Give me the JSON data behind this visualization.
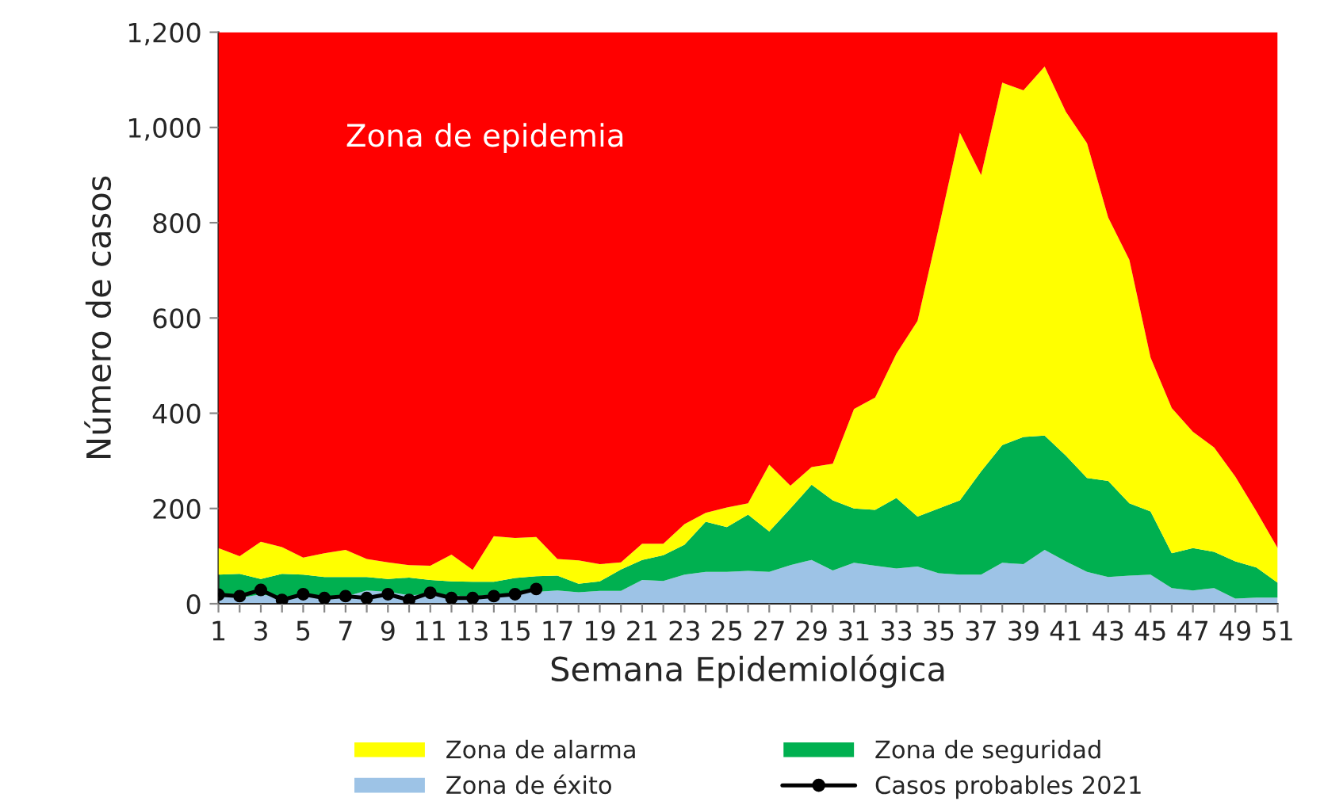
{
  "chart_data": {
    "type": "area",
    "stacked": true,
    "xlabel": "Semana Epidemiológica",
    "ylabel": "Número de casos",
    "x": [
      1,
      2,
      3,
      4,
      5,
      6,
      7,
      8,
      9,
      10,
      11,
      12,
      13,
      14,
      15,
      16,
      17,
      18,
      19,
      20,
      21,
      22,
      23,
      24,
      25,
      26,
      27,
      28,
      29,
      30,
      31,
      32,
      33,
      34,
      35,
      36,
      37,
      38,
      39,
      40,
      41,
      42,
      43,
      44,
      45,
      46,
      47,
      48,
      49,
      50,
      51
    ],
    "series": [
      {
        "name": "Zona de éxito",
        "color": "#9dc3e6",
        "values": [
          15,
          12,
          20,
          12,
          15,
          12,
          15,
          28,
          25,
          18,
          20,
          18,
          15,
          20,
          22,
          25,
          28,
          24,
          27,
          27,
          50,
          48,
          61,
          67,
          67,
          69,
          67,
          81,
          92,
          70,
          86,
          80,
          74,
          78,
          64,
          61,
          61,
          86,
          83,
          113,
          89,
          67,
          56,
          59,
          61,
          33,
          28,
          33,
          11,
          13,
          13
        ]
      },
      {
        "name": "Zona de seguridad",
        "color": "#00b050",
        "values": [
          46,
          51,
          32,
          51,
          46,
          44,
          41,
          28,
          27,
          37,
          30,
          29,
          31,
          26,
          32,
          33,
          31,
          18,
          20,
          45,
          42,
          54,
          63,
          105,
          94,
          118,
          85,
          119,
          158,
          147,
          114,
          117,
          148,
          105,
          136,
          156,
          217,
          247,
          267,
          240,
          222,
          197,
          202,
          152,
          133,
          73,
          89,
          76,
          78,
          63,
          31
        ]
      },
      {
        "name": "Zona de alarma",
        "color": "#ffff00",
        "values": [
          56,
          37,
          78,
          56,
          36,
          50,
          57,
          38,
          35,
          26,
          30,
          56,
          25,
          96,
          84,
          82,
          35,
          49,
          36,
          15,
          34,
          24,
          43,
          19,
          41,
          24,
          140,
          48,
          37,
          77,
          209,
          236,
          303,
          411,
          589,
          772,
          622,
          761,
          728,
          775,
          722,
          703,
          553,
          511,
          323,
          305,
          244,
          219,
          178,
          118,
          73
        ]
      },
      {
        "color": "#ff0000",
        "values": [
          1083,
          1100,
          1070,
          1081,
          1103,
          1094,
          1087,
          1106,
          1113,
          1119,
          1120,
          1097,
          1129,
          1058,
          1062,
          1060,
          1106,
          1109,
          1117,
          1113,
          1074,
          1074,
          1033,
          1009,
          998,
          989,
          908,
          952,
          913,
          906,
          791,
          767,
          675,
          606,
          411,
          211,
          300,
          106,
          122,
          72,
          167,
          233,
          389,
          478,
          683,
          789,
          839,
          872,
          933,
          1006,
          1083
        ]
      },
      {
        "type": "line",
        "name": "Casos probables 2021",
        "color": "#000000",
        "marker": "circle",
        "x": [
          1,
          2,
          3,
          4,
          5,
          6,
          7,
          8,
          9,
          10,
          11,
          12,
          13,
          14,
          15,
          16
        ],
        "values": [
          19,
          16,
          29,
          8,
          20,
          12,
          16,
          12,
          20,
          8,
          23,
          12,
          12,
          16,
          20,
          31
        ]
      }
    ],
    "annotations": [
      "Zona de epidemia"
    ],
    "xlim": [
      1,
      51
    ],
    "xticks": [
      1,
      {
        "value": 2,
        "label": null
      },
      3,
      {
        "value": 4,
        "label": null
      },
      5,
      {
        "value": 6,
        "label": null
      },
      7,
      {
        "value": 8,
        "label": null
      },
      9,
      {
        "value": 10,
        "label": null
      },
      11,
      {
        "value": 12,
        "label": null
      },
      13,
      {
        "value": 14,
        "label": null
      },
      15,
      {
        "value": 16,
        "label": null
      },
      17,
      {
        "value": 18,
        "label": null
      },
      19,
      {
        "value": 20,
        "label": null
      },
      21,
      {
        "value": 22,
        "label": null
      },
      23,
      {
        "value": 24,
        "label": null
      },
      25,
      {
        "value": 26,
        "label": null
      },
      27,
      {
        "value": 28,
        "label": null
      },
      29,
      {
        "value": 30,
        "label": null
      },
      31,
      {
        "value": 32,
        "label": null
      },
      33,
      {
        "value": 34,
        "label": null
      },
      35,
      {
        "value": 36,
        "label": null
      },
      37,
      {
        "value": 38,
        "label": null
      },
      39,
      {
        "value": 40,
        "label": null
      },
      41,
      {
        "value": 42,
        "label": null
      },
      43,
      {
        "value": 44,
        "label": null
      },
      45,
      {
        "value": 46,
        "label": null
      },
      47,
      {
        "value": 48,
        "label": null
      },
      49,
      {
        "value": 50,
        "label": null
      },
      51
    ],
    "ylim": [
      0,
      1200
    ],
    "yticks": [
      0,
      200,
      400,
      600,
      800,
      {
        "value": 1000,
        "label": "1,000"
      },
      {
        "value": 1200,
        "label": "1,200"
      }
    ],
    "legend": "bottom"
  }
}
